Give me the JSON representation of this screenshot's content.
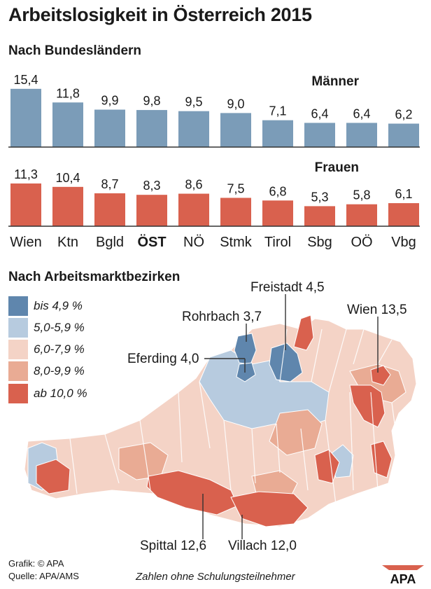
{
  "title": "Arbeitslosigkeit in Österreich 2015",
  "section_bars": "Nach Bundesländern",
  "section_map": "Nach Arbeitsmarktbezirken",
  "chart_data": [
    {
      "type": "bar",
      "categories": [
        "Wien",
        "Ktn",
        "Bgld",
        "ÖST",
        "NÖ",
        "Stmk",
        "Tirol",
        "Sbg",
        "OÖ",
        "Vbg"
      ],
      "highlight_category": "ÖST",
      "series": [
        {
          "name": "Männer",
          "color": "#7b9cb8",
          "values": [
            15.4,
            11.8,
            9.9,
            9.8,
            9.5,
            9.0,
            7.1,
            6.4,
            6.4,
            6.2
          ]
        },
        {
          "name": "Frauen",
          "color": "#d9614e",
          "values": [
            11.3,
            10.4,
            8.7,
            8.3,
            8.6,
            7.5,
            6.8,
            5.3,
            5.8,
            6.1
          ]
        }
      ],
      "value_labels": {
        "Männer": [
          "15,4",
          "11,8",
          "9,9",
          "9,8",
          "9,5",
          "9,0",
          "7,1",
          "6,4",
          "6,4",
          "6,2"
        ],
        "Frauen": [
          "11,3",
          "10,4",
          "8,7",
          "8,3",
          "8,6",
          "7,5",
          "6,8",
          "5,3",
          "5,8",
          "6,1"
        ]
      }
    },
    {
      "type": "heatmap",
      "legend": [
        {
          "label": "bis 4,9 %",
          "color": "#5f86ad"
        },
        {
          "label": "5,0-5,9 %",
          "color": "#b7cbdf"
        },
        {
          "label": "6,0-7,9 %",
          "color": "#f4d3c6"
        },
        {
          "label": "8,0-9,9 %",
          "color": "#e9ab94"
        },
        {
          "label": "ab 10,0 %",
          "color": "#d9614e"
        }
      ],
      "annotations": [
        {
          "label": "Freistadt 4,5",
          "value": 4.5
        },
        {
          "label": "Rohrbach 3,7",
          "value": 3.7
        },
        {
          "label": "Wien 13,5",
          "value": 13.5
        },
        {
          "label": "Eferding 4,0",
          "value": 4.0
        },
        {
          "label": "Spittal 12,6",
          "value": 12.6
        },
        {
          "label": "Villach 12,0",
          "value": 12.0
        }
      ]
    }
  ],
  "footer": {
    "grafik": "Grafik: © APA",
    "quelle": "Quelle: APA/AMS",
    "note": "Zahlen ohne Schulungsteilnehmer",
    "logo": "APA"
  }
}
